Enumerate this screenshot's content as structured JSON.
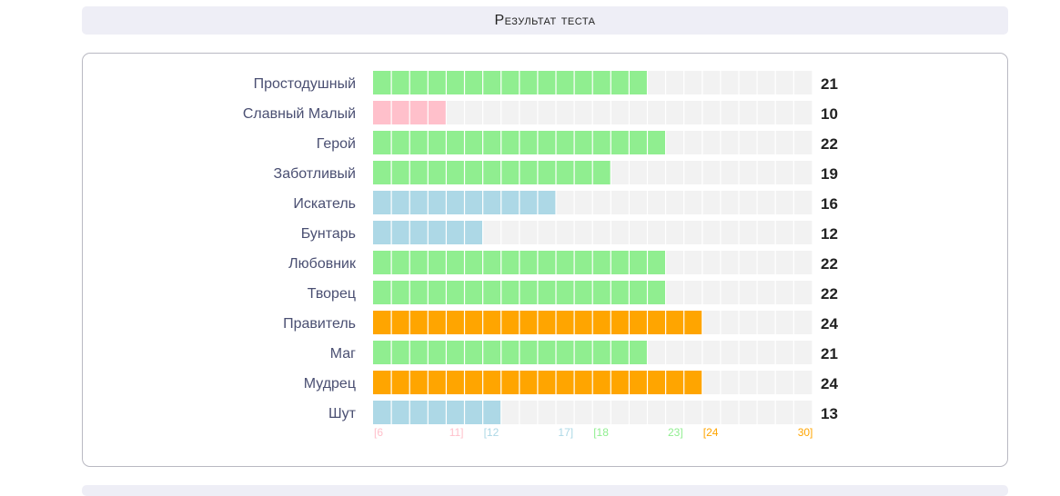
{
  "header": {
    "title": "Результат теста"
  },
  "chart_data": {
    "type": "bar",
    "orientation": "horizontal",
    "title": "Результат теста",
    "xlim": [
      6,
      30
    ],
    "categories": [
      "Простодушный",
      "Славный Малый",
      "Герой",
      "Заботливый",
      "Искатель",
      "Бунтарь",
      "Любовник",
      "Творец",
      "Правитель",
      "Маг",
      "Мудрец",
      "Шут"
    ],
    "values": [
      21,
      10,
      22,
      19,
      16,
      12,
      22,
      22,
      24,
      21,
      24,
      13
    ],
    "ranges": [
      {
        "start_label": "[6",
        "end_label": "11]",
        "min": 6,
        "max": 11,
        "color": "#ffc0cb"
      },
      {
        "start_label": "[12",
        "end_label": "17]",
        "min": 12,
        "max": 17,
        "color": "#add8e6"
      },
      {
        "start_label": "[18",
        "end_label": "23]",
        "min": 18,
        "max": 23,
        "color": "#90ee90"
      },
      {
        "start_label": "[24",
        "end_label": "30]",
        "min": 24,
        "max": 30,
        "color": "#ffa500"
      }
    ],
    "track_color": "#f2f2f2"
  }
}
